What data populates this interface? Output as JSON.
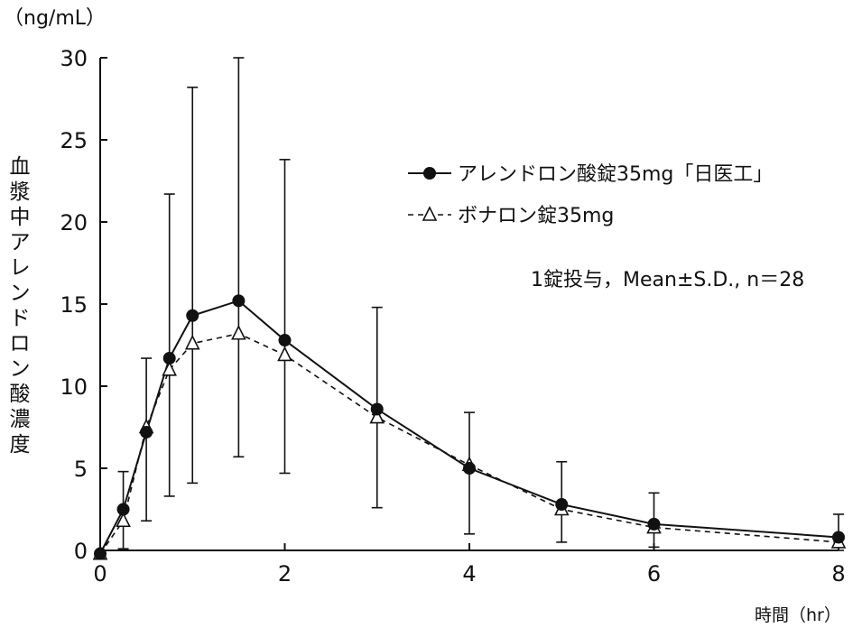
{
  "chart_data": {
    "type": "line",
    "unit_label": "（ng/mL）",
    "xlabel": "時間（hr）",
    "ylabel": "血漿中アレンドロン酸濃度",
    "annotation": "1錠投与，Mean±S.D., n＝28",
    "xlim": [
      0,
      8
    ],
    "ylim": [
      0,
      30
    ],
    "x_ticks": [
      0,
      2,
      4,
      6,
      8
    ],
    "y_ticks": [
      0,
      5,
      10,
      15,
      20,
      25,
      30
    ],
    "grid": false,
    "legend_position": "upper-right",
    "series": [
      {
        "name": "アレンドロン酸錠35mg「日医工」",
        "marker": "filled-circle",
        "line": "solid",
        "color": "#111111",
        "x": [
          0,
          0.25,
          0.5,
          0.75,
          1,
          1.5,
          2,
          3,
          4,
          5,
          6,
          8
        ],
        "y": [
          -0.2,
          2.5,
          7.2,
          11.7,
          14.3,
          15.2,
          12.8,
          8.6,
          5.0,
          2.8,
          1.6,
          0.8
        ],
        "error_upper": [
          -0.2,
          4.8,
          11.7,
          21.7,
          28.2,
          30.0,
          23.8,
          14.8,
          8.4,
          5.4,
          3.5,
          2.2
        ],
        "error_lower": [
          -0.2,
          0.1,
          1.8,
          3.3,
          4.1,
          5.7,
          4.7,
          2.6,
          1.0,
          0.5,
          0.2,
          0.0
        ]
      },
      {
        "name": "ボナロン錠35mg",
        "marker": "open-triangle",
        "line": "dashed",
        "color": "#111111",
        "x": [
          0,
          0.25,
          0.5,
          0.75,
          1,
          1.5,
          2,
          3,
          4,
          5,
          6,
          8
        ],
        "y": [
          -0.2,
          1.8,
          7.5,
          11.0,
          12.6,
          13.2,
          11.9,
          8.1,
          5.2,
          2.5,
          1.4,
          0.5
        ]
      }
    ]
  }
}
